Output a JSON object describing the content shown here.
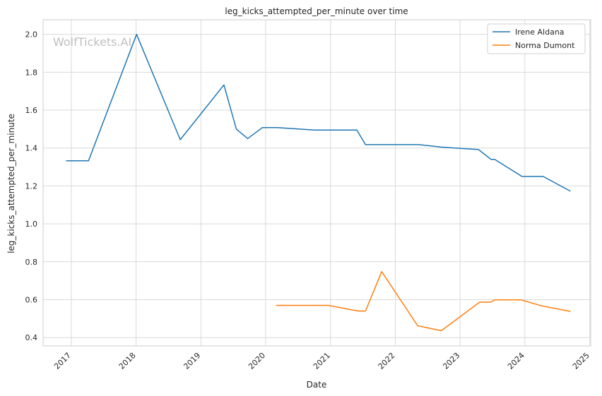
{
  "chart_data": {
    "type": "line",
    "title": "leg_kicks_attempted_per_minute over time",
    "xlabel": "Date",
    "ylabel": "leg_kicks_attempted_per_minute",
    "watermark": "WolfTickets.AI",
    "x_ticks": [
      "2017",
      "2018",
      "2019",
      "2020",
      "2021",
      "2022",
      "2023",
      "2024",
      "2025"
    ],
    "y_ticks": [
      "0.4",
      "0.6",
      "0.8",
      "1.0",
      "1.2",
      "1.4",
      "1.6",
      "1.8",
      "2.0"
    ],
    "xlim": [
      "2016-07-26",
      "2025-01-06"
    ],
    "ylim": [
      0.356,
      2.077
    ],
    "grid": true,
    "legend_position": "top-right",
    "series": [
      {
        "name": "Irene Aldana",
        "color": "#1f77b4",
        "points": [
          [
            "2016-12-03",
            1.333
          ],
          [
            "2017-04-08",
            1.333
          ],
          [
            "2018-01-04",
            2.0
          ],
          [
            "2018-09-07",
            1.444
          ],
          [
            "2019-05-11",
            1.733
          ],
          [
            "2019-07-20",
            1.5
          ],
          [
            "2019-09-22",
            1.45
          ],
          [
            "2019-12-14",
            1.508
          ],
          [
            "2020-03-07",
            1.508
          ],
          [
            "2020-10-03",
            1.495
          ],
          [
            "2021-05-29",
            1.495
          ],
          [
            "2021-07-17",
            1.418
          ],
          [
            "2022-05-14",
            1.418
          ],
          [
            "2022-09-17",
            1.405
          ],
          [
            "2023-04-15",
            1.392
          ],
          [
            "2023-06-24",
            1.34
          ],
          [
            "2023-07-15",
            1.34
          ],
          [
            "2023-12-16",
            1.25
          ],
          [
            "2024-04-13",
            1.25
          ],
          [
            "2024-09-14",
            1.172
          ]
        ]
      },
      {
        "name": "Norma Dumont",
        "color": "#ff7f0e",
        "points": [
          [
            "2020-02-29",
            0.57
          ],
          [
            "2020-12-19",
            0.57
          ],
          [
            "2021-06-05",
            0.54
          ],
          [
            "2021-07-17",
            0.54
          ],
          [
            "2021-10-16",
            0.748
          ],
          [
            "2022-05-07",
            0.462
          ],
          [
            "2022-09-17",
            0.436
          ],
          [
            "2023-04-22",
            0.587
          ],
          [
            "2023-06-24",
            0.587
          ],
          [
            "2023-07-15",
            0.599
          ],
          [
            "2023-12-09",
            0.599
          ],
          [
            "2024-04-06",
            0.567
          ],
          [
            "2024-09-14",
            0.538
          ]
        ]
      }
    ]
  }
}
